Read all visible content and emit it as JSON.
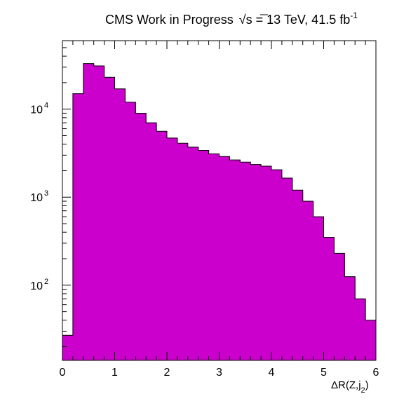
{
  "chart_data": {
    "type": "bar",
    "title": {
      "main": "CMS Work in Progress",
      "sqrt": "√s",
      "energy": "= 13 TeV, 41.5 fb",
      "exponent": "-1"
    },
    "xlabel": {
      "delta": "Δ",
      "base": "R(Z,j",
      "sub": "2",
      "close": ")"
    },
    "ylabel": "",
    "log_y": true,
    "xlim": [
      0,
      6
    ],
    "ylim": [
      14,
      60000
    ],
    "bin_width": 0.2,
    "bin_edges_start": 0,
    "values": [
      27,
      15000,
      33000,
      31000,
      23000,
      17000,
      12000,
      9000,
      7000,
      5600,
      4700,
      4100,
      3700,
      3400,
      3100,
      2900,
      2650,
      2500,
      2350,
      2250,
      2050,
      1650,
      1200,
      900,
      600,
      350,
      230,
      125,
      70,
      40
    ],
    "fill_color": "#cc00cc",
    "edge_color": "#000000",
    "x_ticks": [
      {
        "value": 0,
        "label": "0"
      },
      {
        "value": 1,
        "label": "1"
      },
      {
        "value": 2,
        "label": "2"
      },
      {
        "value": 3,
        "label": "3"
      },
      {
        "value": 4,
        "label": "4"
      },
      {
        "value": 5,
        "label": "5"
      },
      {
        "value": 6,
        "label": "6"
      }
    ],
    "y_major_ticks": [
      {
        "value": 100,
        "base": "10",
        "exp": "2"
      },
      {
        "value": 1000,
        "base": "10",
        "exp": "3"
      },
      {
        "value": 10000,
        "base": "10",
        "exp": "4"
      }
    ],
    "grid": false,
    "legend": "none"
  }
}
